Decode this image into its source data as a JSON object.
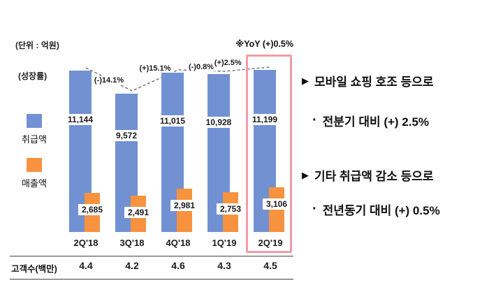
{
  "chart": {
    "unit_label": "(단위 : 억원)",
    "growth_axis_label": "(성장률)",
    "yoy_note": "※YoY (+)0.5%",
    "legend": [
      {
        "label": "취급액",
        "color": "#7191d3"
      },
      {
        "label": "매출액",
        "color": "#f7923f"
      }
    ],
    "customer_row_label": "고객수(백만)"
  },
  "chart_data": {
    "type": "bar",
    "title": "",
    "unit": "억원",
    "categories": [
      "2Q'18",
      "3Q'18",
      "4Q'18",
      "1Q'19",
      "2Q'19"
    ],
    "series": [
      {
        "name": "취급액",
        "color": "#7191d3",
        "values": [
          11144,
          9572,
          11015,
          10928,
          11199
        ],
        "value_labels": [
          "11,144",
          "9,572",
          "11,015",
          "10,928",
          "11,199"
        ]
      },
      {
        "name": "매출액",
        "color": "#f7923f",
        "values": [
          2685,
          2491,
          2981,
          2753,
          3106
        ],
        "value_labels": [
          "2,685",
          "2,491",
          "2,981",
          "2,753",
          "3,106"
        ]
      }
    ],
    "growth_line": {
      "label": "(성장률)",
      "segment_labels": [
        "(-)14.1%",
        "(+)15.1%",
        "(-)0.8%",
        "(+)2.5%"
      ]
    },
    "customer_counts_millions": [
      "4.4",
      "4.2",
      "4.6",
      "4.3",
      "4.5"
    ],
    "highlighted_category": "2Q'19",
    "ylim": [
      0,
      12000
    ],
    "grid": false,
    "legend_position": "left"
  },
  "insights": [
    {
      "marker": "▶",
      "heading": "모바일 쇼핑 호조 등으로",
      "bullet": "·",
      "detail": "전분기 대비 (+) 2.5%"
    },
    {
      "marker": "▶",
      "heading": "기타 취급액 감소 등으로",
      "bullet": "·",
      "detail": "전년동기 대비 (+) 0.5%"
    }
  ],
  "highlight_color": "#f29ca7"
}
